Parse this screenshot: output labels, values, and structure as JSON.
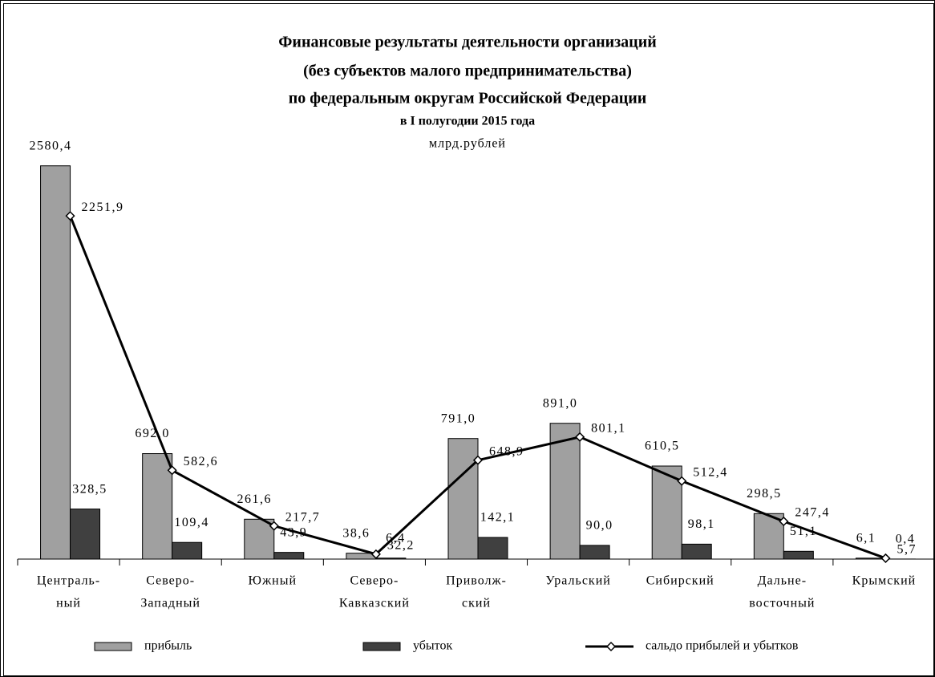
{
  "chart_data": {
    "type": "bar_line",
    "title": [
      "Финансовые результаты деятельности организаций",
      "(без субъектов малого предпринимательства)",
      "по федеральным округам Российской Федерации",
      "в I полугодии 2015 года"
    ],
    "subtitle": "млрд.рублей",
    "categories": [
      [
        "Централь-",
        "ный"
      ],
      [
        "Северо-",
        "Западный"
      ],
      [
        "Южный"
      ],
      [
        "Северо-",
        "Кавказский"
      ],
      [
        "Приволж-",
        "ский"
      ],
      [
        "Уральский"
      ],
      [
        "Сибирский"
      ],
      [
        "Дальне-",
        "восточный"
      ],
      [
        "Крымский"
      ]
    ],
    "ylim": [
      0,
      2700
    ],
    "series": [
      {
        "name": "прибыль",
        "type": "bar",
        "color": "#a0a0a0",
        "values": [
          2580.4,
          692.0,
          261.6,
          38.6,
          791.0,
          891.0,
          610.5,
          298.5,
          6.1
        ],
        "value_labels": [
          "2580,4",
          "692,0",
          "261,6",
          "38,6",
          "791,0",
          "891,0",
          "610,5",
          "298,5",
          "6,1"
        ]
      },
      {
        "name": "убыток",
        "type": "bar",
        "color": "#404040",
        "values": [
          328.5,
          109.4,
          43.9,
          6.4,
          142.1,
          90.0,
          98.1,
          51.1,
          0.4
        ],
        "value_labels": [
          "328,5",
          "109,4",
          "43,9",
          "6,4",
          "142,1",
          "90,0",
          "98,1",
          "51,1",
          "0,4"
        ]
      },
      {
        "name": "сальдо прибылей и убытков",
        "type": "line",
        "color": "#000000",
        "values": [
          2251.9,
          582.6,
          217.7,
          32.2,
          648.9,
          801.1,
          512.4,
          247.4,
          5.7
        ],
        "value_labels": [
          "2251,9",
          "582,6",
          "217,7",
          "32,2",
          "648,9",
          "801,1",
          "512,4",
          "247,4",
          "5,7"
        ]
      }
    ]
  }
}
